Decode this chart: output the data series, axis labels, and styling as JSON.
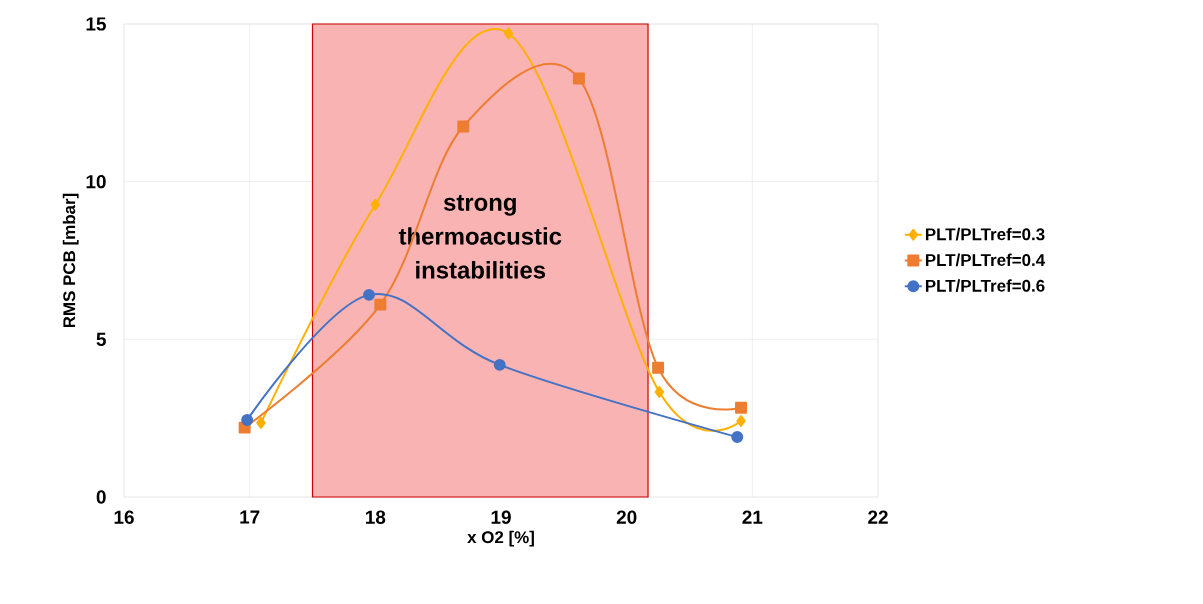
{
  "chart_data": {
    "type": "line",
    "xlabel": "x O2 [%]",
    "ylabel": "RMS PCB [mbar]",
    "xlim": [
      16,
      22
    ],
    "xticks": [
      16,
      17,
      18,
      19,
      20,
      21,
      22
    ],
    "ylim": [
      0,
      15
    ],
    "yticks": [
      0,
      5,
      10,
      15
    ],
    "grid": true,
    "legend": "right",
    "series": [
      {
        "name": "PLT/PLTref=0.3",
        "color": "#ffb000",
        "marker": "diamond",
        "x": [
          17.09,
          18.0,
          19.06,
          20.26,
          20.91
        ],
        "values": [
          2.35,
          9.27,
          14.7,
          3.33,
          2.41
        ]
      },
      {
        "name": "PLT/PLTref=0.4",
        "color": "#ed7d31",
        "marker": "square",
        "x": [
          16.96,
          18.04,
          18.7,
          19.62,
          20.25,
          20.91
        ],
        "values": [
          2.2,
          6.1,
          11.75,
          13.27,
          4.1,
          2.83
        ]
      },
      {
        "name": "PLT/PLTref=0.6",
        "color": "#4472c4",
        "marker": "circle",
        "x": [
          16.98,
          17.95,
          18.99,
          20.88
        ],
        "values": [
          2.44,
          6.41,
          4.19,
          1.9
        ]
      }
    ],
    "bands": [
      {
        "axis": "x",
        "from": 17.5,
        "to": 20.17,
        "label": "strong thermoacustic instabilities",
        "color": "#f9b3b3"
      }
    ]
  }
}
